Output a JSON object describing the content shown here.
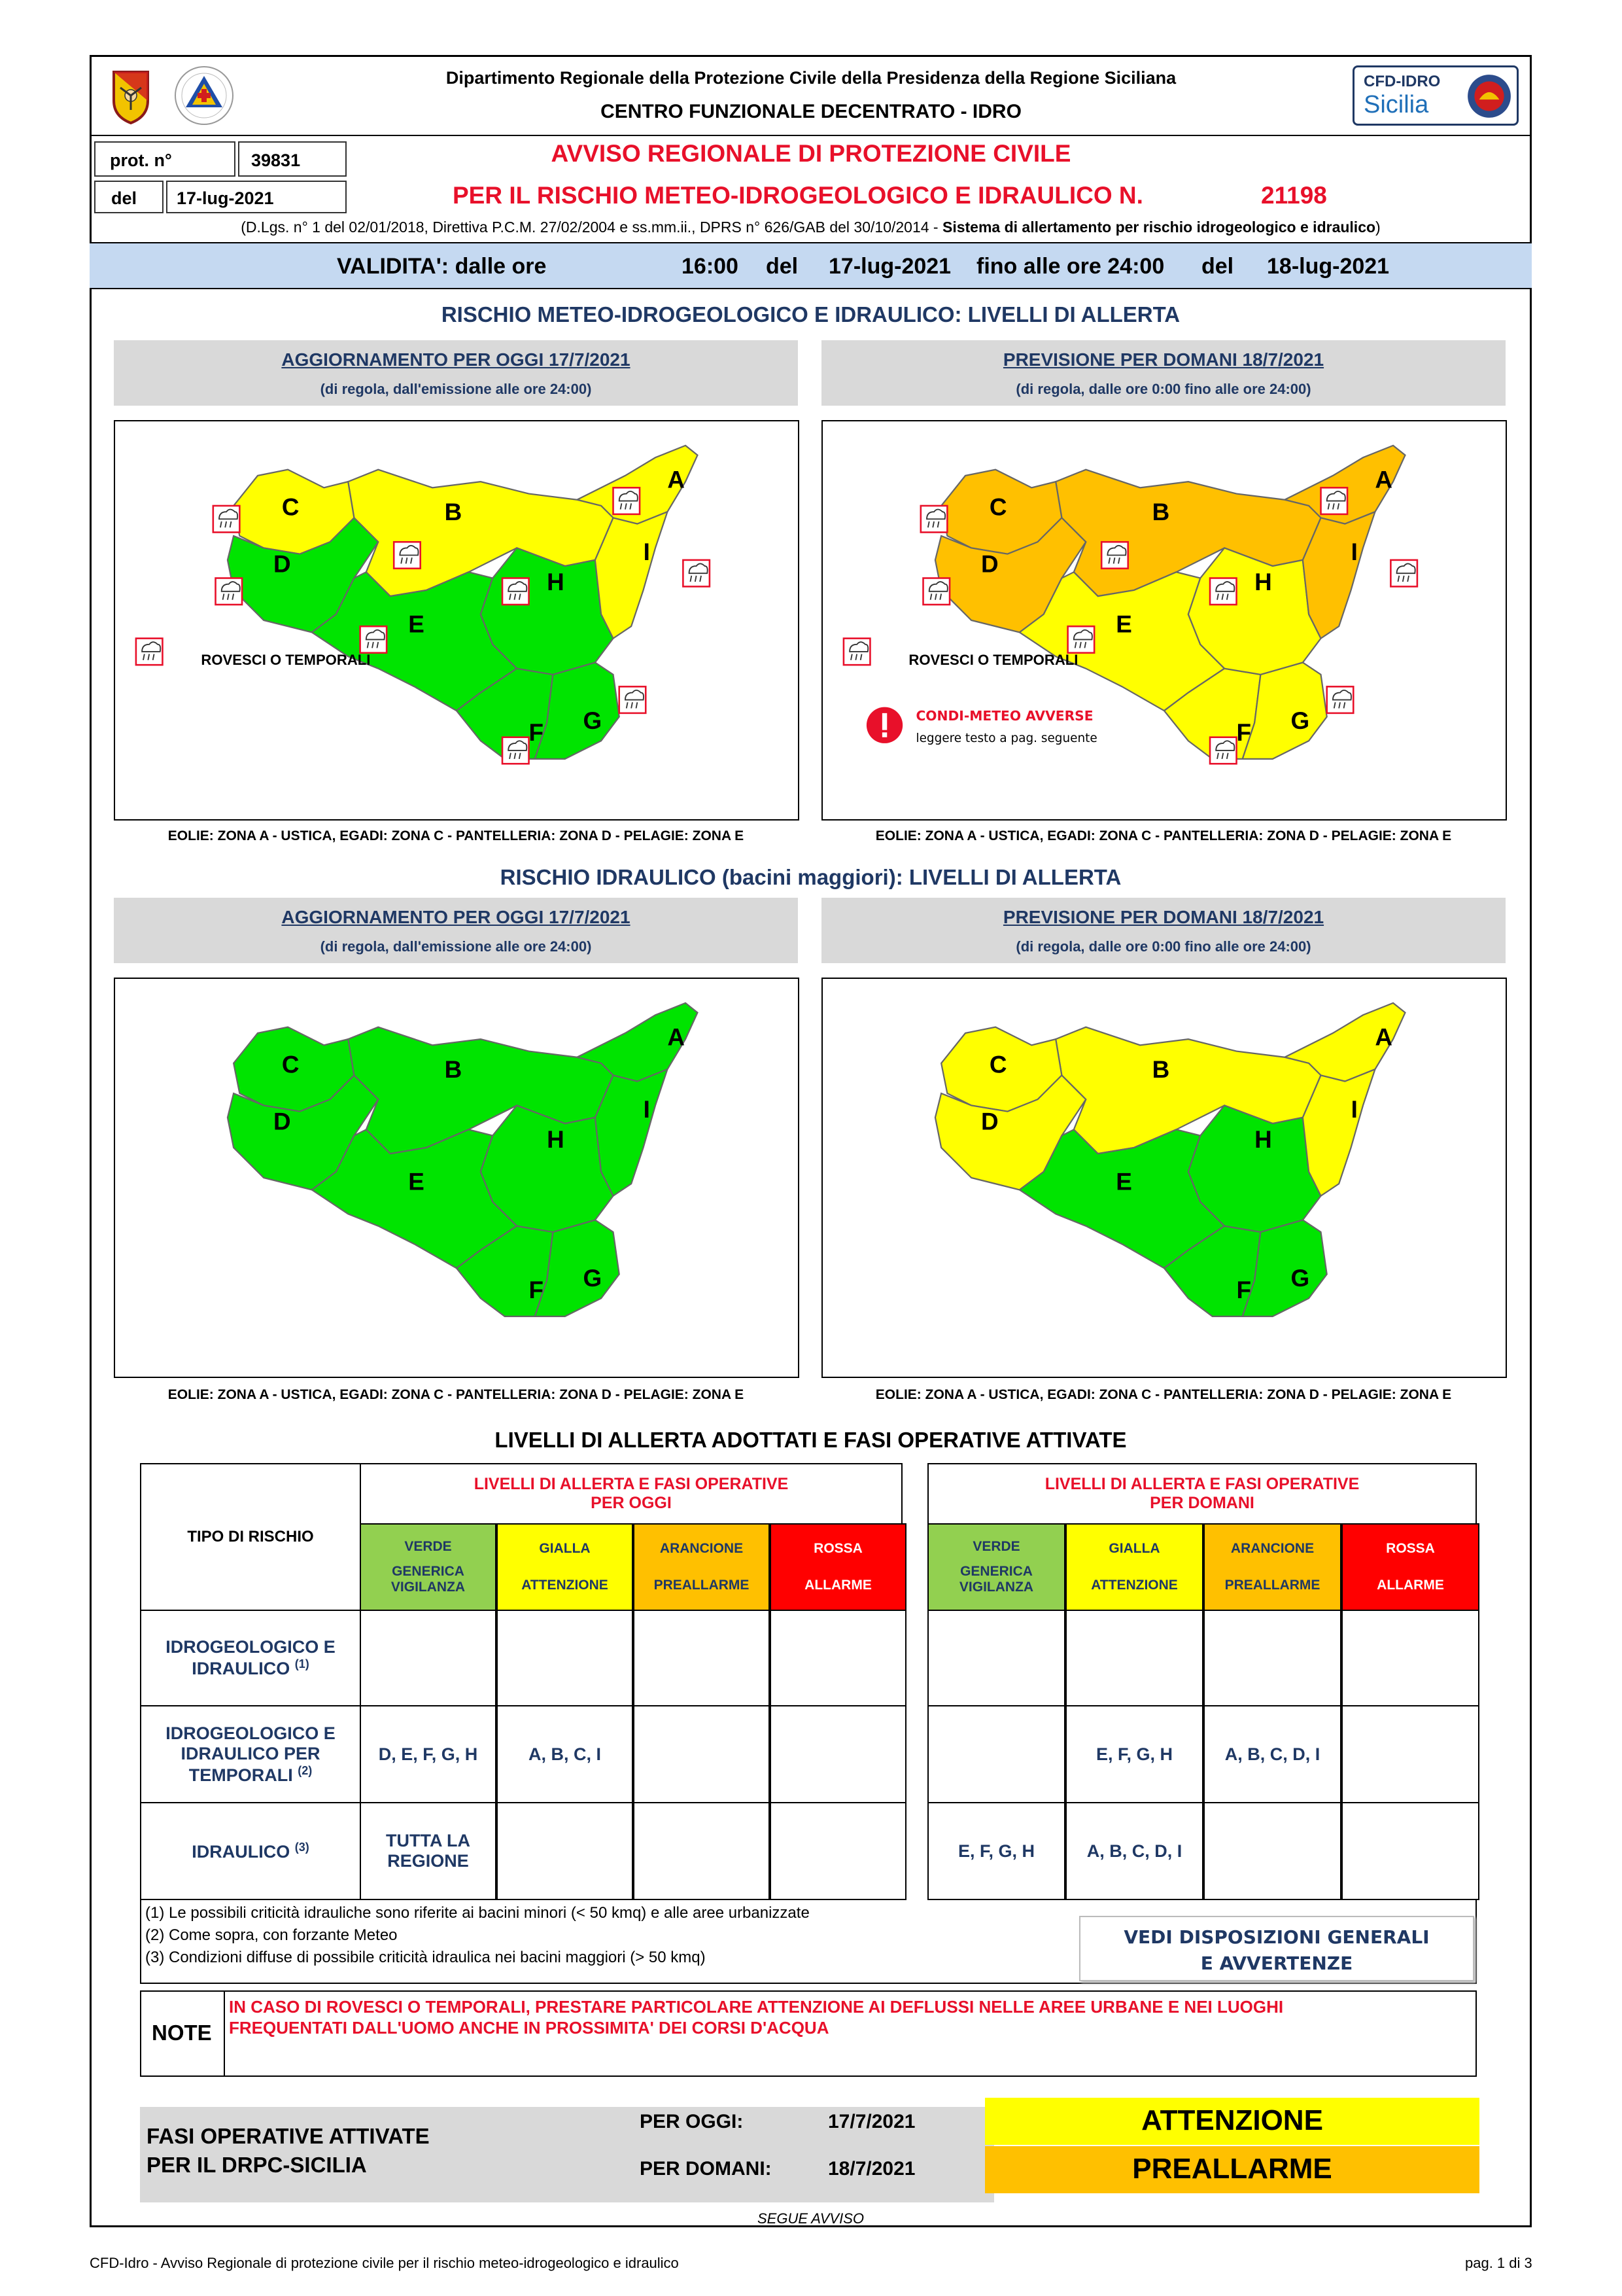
{
  "header": {
    "dept": "Dipartimento Regionale della Protezione Civile della Presidenza della Regione Siciliana",
    "centro": "CENTRO FUNZIONALE DECENTRATO - IDRO",
    "cfd_label": "CFD-IDRO",
    "cfd_sicilia": "Sicilia",
    "prot_label": "prot. n°",
    "prot_value": "39831",
    "del_label": "del",
    "del_value": "17-lug-2021",
    "title1": "AVVISO REGIONALE DI PROTEZIONE CIVILE",
    "title2": "PER IL RISCHIO METEO-IDROGEOLOGICO E IDRAULICO N.",
    "avviso_number": "21198",
    "legal_text": "(D.Lgs. n° 1 del 02/01/2018, Direttiva P.C.M. 27/02/2004 e ss.mm.ii., DPRS n° 626/GAB del 30/10/2014 - ",
    "legal_bold": "Sistema di allertamento per rischio idrogeologico e idraulico",
    "legal_close": ")"
  },
  "validity": {
    "label": "VALIDITA': dalle ore",
    "from_time": "16:00",
    "del1": "del",
    "from_date": "17-lug-2021",
    "until": "fino alle ore 24:00",
    "del2": "del",
    "to_date": "18-lug-2021"
  },
  "section1": {
    "title": "RISCHIO METEO-IDROGEOLOGICO E IDRAULICO: LIVELLI DI ALLERTA",
    "left_title": "AGGIORNAMENTO PER OGGI 17/7/2021",
    "left_sub": "(di regola, dall'emissione alle ore 24:00)",
    "right_title": "PREVISIONE PER DOMANI 18/7/2021",
    "right_sub": "(di regola, dalle ore 0:00 fino alle ore 24:00)",
    "legend_storm": "ROVESCI O TEMPORALI",
    "legend_adverse": "CONDI-METEO AVVERSE",
    "legend_adverse_sub": "leggere testo a pag. seguente",
    "islands": "EOLIE: ZONA A - USTICA, EGADI: ZONA C - PANTELLERIA: ZONA D - PELAGIE: ZONA E"
  },
  "section2": {
    "title": "RISCHIO IDRAULICO (bacini maggiori): LIVELLI DI ALLERTA",
    "left_title": "AGGIORNAMENTO PER OGGI 17/7/2021",
    "left_sub": "(di regola, dall'emissione alle ore 24:00)",
    "right_title": "PREVISIONE PER DOMANI 18/7/2021",
    "right_sub": "(di regola, dalle ore 0:00 fino alle ore 24:00)",
    "islands": "EOLIE: ZONA A - USTICA, EGADI: ZONA C - PANTELLERIA: ZONA D - PELAGIE: ZONA E"
  },
  "zones": [
    "A",
    "B",
    "C",
    "D",
    "E",
    "F",
    "G",
    "H",
    "I"
  ],
  "colors": {
    "green": "#00e400",
    "yellow": "#ffff00",
    "orange": "#ffc000",
    "red": "#ff0000",
    "navy": "#1f3864",
    "alert_red": "#e8102a",
    "validity_bg": "#c5d9f1"
  },
  "maps": {
    "meteo_oggi": {
      "A": "yellow",
      "B": "yellow",
      "C": "yellow",
      "D": "green",
      "E": "green",
      "F": "green",
      "G": "green",
      "H": "green",
      "I": "yellow",
      "storms": [
        "C",
        "B",
        "A",
        "I",
        "D",
        "E",
        "H",
        "G",
        "F"
      ]
    },
    "meteo_domani": {
      "A": "orange",
      "B": "orange",
      "C": "orange",
      "D": "orange",
      "E": "yellow",
      "F": "yellow",
      "G": "yellow",
      "H": "yellow",
      "I": "orange",
      "storms": [
        "C",
        "B",
        "A",
        "I",
        "D",
        "E",
        "H",
        "G",
        "F"
      ]
    },
    "idro_oggi": {
      "A": "green",
      "B": "green",
      "C": "green",
      "D": "green",
      "E": "green",
      "F": "green",
      "G": "green",
      "H": "green",
      "I": "green"
    },
    "idro_domani": {
      "A": "yellow",
      "B": "yellow",
      "C": "yellow",
      "D": "yellow",
      "E": "green",
      "F": "green",
      "G": "green",
      "H": "green",
      "I": "yellow"
    }
  },
  "levels": {
    "title": "LIVELLI DI ALLERTA ADOTTATI E FASI OPERATIVE ATTIVATE",
    "tipo": "TIPO DI RISCHIO",
    "oggi_header1": "LIVELLI DI ALLERTA E FASI OPERATIVE",
    "oggi_header2": "PER OGGI",
    "domani_header1": "LIVELLI DI ALLERTA E FASI OPERATIVE",
    "domani_header2": "PER DOMANI",
    "verde": "VERDE",
    "verde_sub1": "GENERICA",
    "verde_sub2": "VIGILANZA",
    "gialla": "GIALLA",
    "gialla_sub": "ATTENZIONE",
    "arancione": "ARANCIONE",
    "arancione_sub": "PREALLARME",
    "rossa": "ROSSA",
    "rossa_sub": "ALLARME",
    "rows": [
      {
        "name1": "IDROGEOLOGICO E",
        "name2": "IDRAULICO",
        "sup": "(1)",
        "oggi": [
          "",
          "",
          "",
          ""
        ],
        "domani": [
          "",
          "",
          "",
          ""
        ]
      },
      {
        "name1": "IDROGEOLOGICO E",
        "name2": "IDRAULICO PER",
        "name3": "TEMPORALI",
        "sup": "(2)",
        "oggi": [
          "D, E, F, G, H",
          "A, B, C, I",
          "",
          ""
        ],
        "domani": [
          "",
          "E, F, G, H",
          "A, B, C, D, I",
          ""
        ]
      },
      {
        "name1": "IDRAULICO",
        "sup": "(3)",
        "oggi": [
          "TUTTA LA REGIONE",
          "",
          "",
          ""
        ],
        "oggi_line1": "TUTTA LA",
        "oggi_line2": "REGIONE",
        "domani": [
          "E, F, G, H",
          "A, B, C, D, I",
          "",
          ""
        ]
      }
    ],
    "note1": "(1) Le possibili criticità idrauliche sono riferite ai bacini minori (< 50 kmq) e alle aree urbanizzate",
    "note2": "(2) Come sopra, con forzante Meteo",
    "note3": "(3) Condizioni diffuse di possibile criticità idraulica nei bacini maggiori (> 50 kmq)",
    "vedi1": "VEDI DISPOSIZIONI GENERALI",
    "vedi2": "E AVVERTENZE",
    "note_label": "NOTE",
    "note_text1": "IN CASO DI ROVESCI O TEMPORALI, PRESTARE PARTICOLARE ATTENZIONE AI DEFLUSSI NELLE AREE URBANE E NEI LUOGHI",
    "note_text2": "FREQUENTATI DALL'UOMO ANCHE IN PROSSIMITA' DEI CORSI D'ACQUA"
  },
  "fasi": {
    "label1": "FASI OPERATIVE ATTIVATE",
    "label2": "PER IL DRPC-SICILIA",
    "oggi_label": "PER OGGI:",
    "oggi_date": "17/7/2021",
    "oggi_phase": "ATTENZIONE",
    "domani_label": "PER DOMANI:",
    "domani_date": "18/7/2021",
    "domani_phase": "PREALLARME"
  },
  "footer": {
    "segue": "SEGUE AVVISO",
    "left": "CFD-Idro - Avviso Regionale di protezione civile per il rischio meteo-idrogeologico e idraulico",
    "page": "pag. 1 di 3"
  }
}
